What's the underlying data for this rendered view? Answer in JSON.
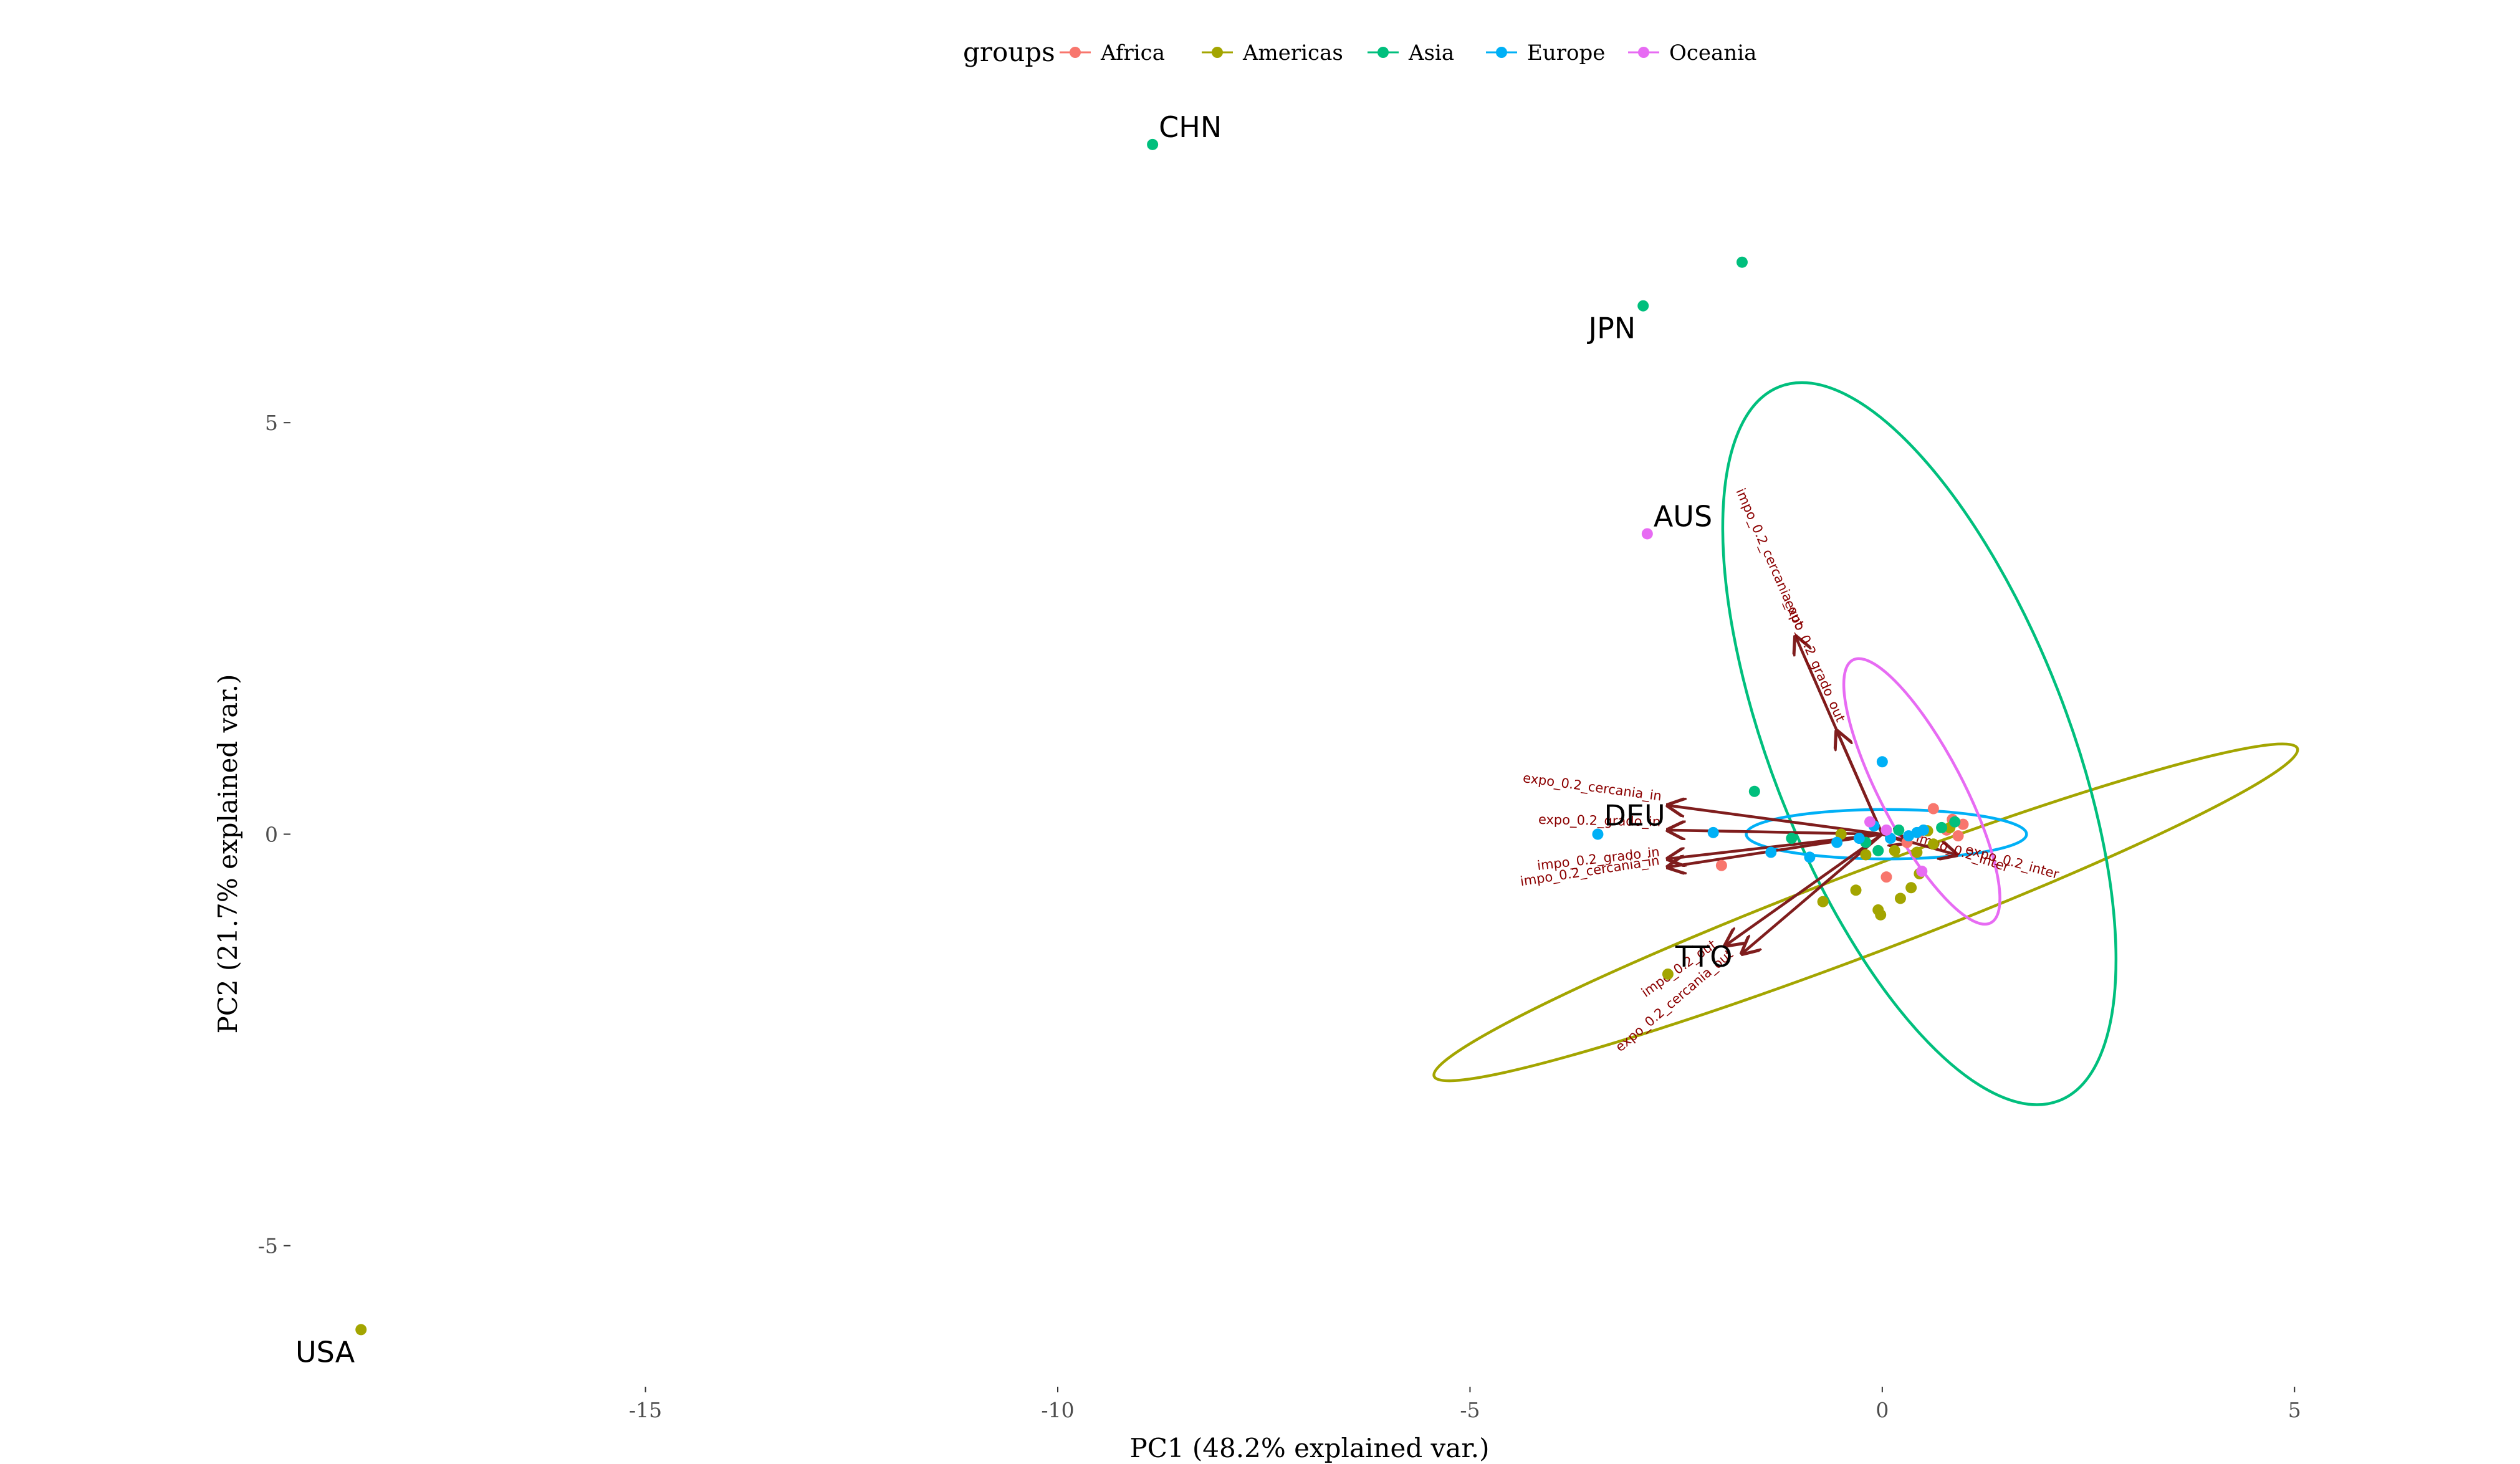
{
  "chart_data": {
    "type": "scatter",
    "title": "",
    "xlabel": "PC1 (48.2% explained var.)",
    "ylabel": "PC2 (21.7% explained var.)",
    "xlim": [
      -19.2,
      6.2
    ],
    "ylim": [
      -6.6,
      9.0
    ],
    "x_ticks": [
      -15,
      -10,
      -5,
      0,
      5
    ],
    "y_ticks": [
      -5,
      0,
      5
    ],
    "x_tick_labels": [
      "-15",
      "-10",
      "-5",
      "0",
      "5"
    ],
    "y_tick_labels": [
      "-5",
      "0",
      "5"
    ],
    "grid": false,
    "legend": {
      "title": "groups",
      "position": "top",
      "entries": [
        {
          "name": "Africa",
          "color": "#F8766D"
        },
        {
          "name": "Americas",
          "color": "#A3A500"
        },
        {
          "name": "Asia",
          "color": "#00BF7D"
        },
        {
          "name": "Europe",
          "color": "#00B0F6"
        },
        {
          "name": "Oceania",
          "color": "#E76BF3"
        }
      ]
    },
    "series": [
      {
        "name": "Africa",
        "color": "#F8766D",
        "points": [
          [
            0.62,
            0.31
          ],
          [
            0.85,
            0.18
          ],
          [
            0.98,
            0.12
          ],
          [
            0.78,
            0.05
          ],
          [
            0.92,
            -0.02
          ],
          [
            0.05,
            -0.52
          ],
          [
            -1.95,
            -0.38
          ],
          [
            0.45,
            0.02
          ],
          [
            0.3,
            -0.1
          ]
        ]
      },
      {
        "name": "Americas",
        "color": "#A3A500",
        "points": [
          [
            -18.45,
            -6.02
          ],
          [
            -2.6,
            -1.7
          ],
          [
            -0.72,
            -0.82
          ],
          [
            -0.32,
            -0.68
          ],
          [
            -0.05,
            -0.92
          ],
          [
            -0.02,
            -0.98
          ],
          [
            0.22,
            -0.78
          ],
          [
            0.35,
            -0.65
          ],
          [
            0.45,
            -0.48
          ],
          [
            0.42,
            -0.22
          ],
          [
            0.62,
            -0.12
          ],
          [
            0.82,
            0.08
          ],
          [
            -0.5,
            0.0
          ],
          [
            -0.2,
            -0.25
          ],
          [
            0.15,
            -0.2
          ],
          [
            0.55,
            0.04
          ]
        ]
      },
      {
        "name": "Asia",
        "color": "#00BF7D",
        "points": [
          [
            -8.85,
            8.38
          ],
          [
            -1.7,
            6.95
          ],
          [
            -2.9,
            6.42
          ],
          [
            -1.55,
            0.52
          ],
          [
            -0.05,
            -0.2
          ],
          [
            0.72,
            0.08
          ],
          [
            -1.1,
            -0.05
          ],
          [
            0.2,
            0.05
          ],
          [
            -0.2,
            -0.1
          ],
          [
            0.88,
            0.15
          ]
        ]
      },
      {
        "name": "Europe",
        "color": "#00B0F6",
        "points": [
          [
            -3.45,
            0.0
          ],
          [
            -2.05,
            0.02
          ],
          [
            -1.35,
            -0.22
          ],
          [
            -0.88,
            -0.28
          ],
          [
            0.0,
            0.88
          ],
          [
            -0.28,
            -0.05
          ],
          [
            0.42,
            0.02
          ],
          [
            0.5,
            0.05
          ],
          [
            -0.1,
            0.1
          ],
          [
            0.1,
            -0.05
          ],
          [
            0.32,
            -0.02
          ],
          [
            -0.55,
            -0.1
          ]
        ]
      },
      {
        "name": "Oceania",
        "color": "#E76BF3",
        "points": [
          [
            -2.85,
            3.65
          ],
          [
            0.48,
            -0.45
          ],
          [
            -0.15,
            0.15
          ],
          [
            0.05,
            0.05
          ]
        ]
      }
    ],
    "point_labels": [
      {
        "text": "CHN",
        "x": -8.85,
        "y": 8.38
      },
      {
        "text": "JPN",
        "x": -2.9,
        "y": 6.42
      },
      {
        "text": "AUS",
        "x": -2.85,
        "y": 3.65
      },
      {
        "text": "DEU",
        "x": -3.45,
        "y": 0.0
      },
      {
        "text": "TTO",
        "x": -2.6,
        "y": -1.7
      },
      {
        "text": "USA",
        "x": -18.45,
        "y": -6.02
      }
    ],
    "ellipses": [
      {
        "group": "Americas",
        "cx": -0.2,
        "cy": -0.95,
        "rx": 5.6,
        "ry": 0.5,
        "angle_deg": 20.8
      },
      {
        "group": "Asia",
        "cx": 0.45,
        "cy": 1.1,
        "rx": 4.65,
        "ry": 1.8,
        "angle_deg": -68.6
      },
      {
        "group": "Europe",
        "cx": 0.05,
        "cy": 0.0,
        "rx": 1.7,
        "ry": 0.3,
        "angle_deg": 0
      },
      {
        "group": "Oceania",
        "cx": 0.48,
        "cy": 0.52,
        "rx": 1.8,
        "ry": 0.5,
        "angle_deg": -62.3
      }
    ],
    "loadings": [
      {
        "label": "expo_0.2_cercania_in",
        "x": -2.6,
        "y": 0.35
      },
      {
        "label": "expo_0.2_grado_in",
        "x": -2.6,
        "y": 0.05
      },
      {
        "label": "impo_0.2_grado_in",
        "x": -2.6,
        "y": -0.3
      },
      {
        "label": "impo_0.2_cercania_in",
        "x": -2.6,
        "y": -0.4
      },
      {
        "label": "expo_0.2_cercania_out",
        "x": -1.7,
        "y": -1.45
      },
      {
        "label": "impo_0.2_out",
        "x": -1.9,
        "y": -1.35
      },
      {
        "label": "impo_0.2_cercania_out",
        "x": -1.05,
        "y": 2.4
      },
      {
        "label": "expo_0.2_grado_out",
        "x": -0.55,
        "y": 1.25
      },
      {
        "label": "expo_0.2_inter",
        "x": 0.9,
        "y": -0.25
      },
      {
        "label": "impo_0.2_inter",
        "x": 0.3,
        "y": -0.1
      }
    ]
  }
}
